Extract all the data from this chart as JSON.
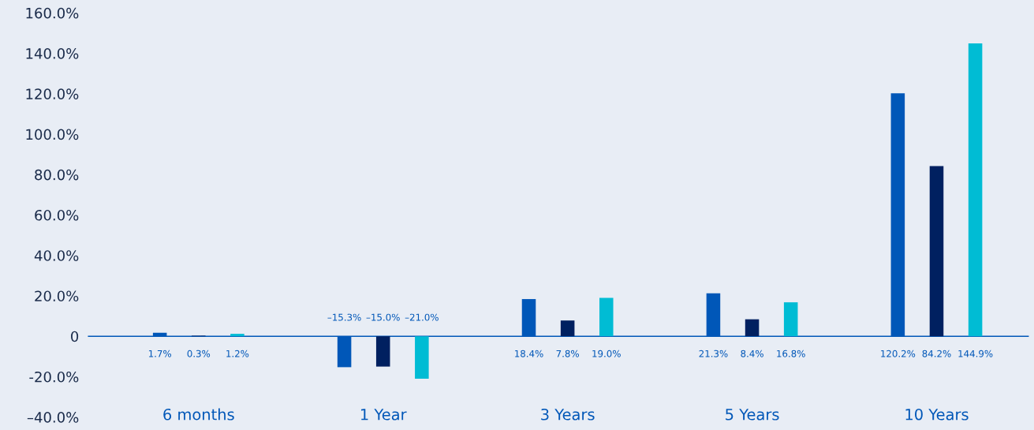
{
  "chart_data": {
    "type": "bar",
    "categories": [
      "6 months",
      "1 Year",
      "3 Years",
      "5 Years",
      "10 Years"
    ],
    "series": [
      {
        "color": "#0057b8",
        "values": [
          1.7,
          -15.3,
          18.4,
          21.3,
          120.2
        ],
        "value_labels": [
          "1.7%",
          "–15.3%",
          "18.4%",
          "21.3%",
          "120.2%"
        ]
      },
      {
        "color": "#002060",
        "values": [
          0.3,
          -15.0,
          7.8,
          8.4,
          84.2
        ],
        "value_labels": [
          "0.3%",
          "–15.0%",
          "7.8%",
          "8.4%",
          "84.2%"
        ]
      },
      {
        "color": "#00bcd4",
        "values": [
          1.2,
          -21.0,
          19.0,
          16.8,
          144.9
        ],
        "value_labels": [
          "1.2%",
          "–21.0%",
          "19.0%",
          "16.8%",
          "144.9%"
        ]
      }
    ],
    "ylim": [
      -40,
      160
    ],
    "yticks": [
      {
        "value": -40,
        "label": "–40.0%"
      },
      {
        "value": -20,
        "label": "-20.0%"
      },
      0,
      {
        "value": 20,
        "label": "20.0%"
      },
      {
        "value": 40,
        "label": "40.0%"
      },
      {
        "value": 60,
        "label": "60.0%"
      },
      {
        "value": 80,
        "label": "80.0%"
      },
      {
        "value": 100,
        "label": "100.0%"
      },
      {
        "value": 120,
        "label": "120.0%"
      },
      {
        "value": 140,
        "label": "140.0%"
      },
      {
        "value": 160,
        "label": "160.0%"
      }
    ],
    "ref_lines": [
      {
        "axis": "y",
        "value": 0,
        "color": "#0057b8"
      }
    ],
    "grid": false
  }
}
